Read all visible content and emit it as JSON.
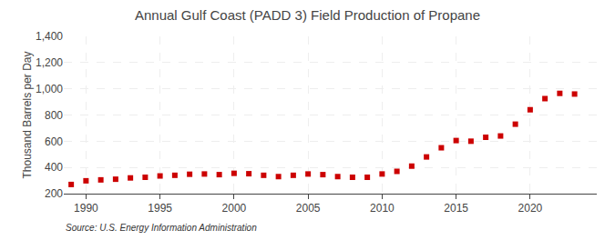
{
  "chart_data": {
    "type": "scatter",
    "title": "Annual Gulf Coast (PADD 3) Field Production of Propane",
    "ylabel": "Thousand Barrels per Day",
    "annotations": [
      "Source: U.S. Energy Information Administration"
    ],
    "x": [
      1989,
      1990,
      1991,
      1992,
      1993,
      1994,
      1995,
      1996,
      1997,
      1998,
      1999,
      2000,
      2001,
      2002,
      2003,
      2004,
      2005,
      2006,
      2007,
      2008,
      2009,
      2010,
      2011,
      2012,
      2013,
      2014,
      2015,
      2016,
      2017,
      2018,
      2019,
      2020,
      2021,
      2022,
      2023
    ],
    "values": [
      270,
      298,
      305,
      310,
      320,
      325,
      335,
      340,
      348,
      350,
      345,
      355,
      352,
      340,
      330,
      340,
      350,
      345,
      330,
      325,
      325,
      350,
      370,
      410,
      480,
      550,
      605,
      600,
      630,
      640,
      730,
      840,
      925,
      965,
      960
    ],
    "color": "#cc0000",
    "marker": "square",
    "xlim": [
      1988.5,
      2024.5
    ],
    "xticks": [
      1990,
      1995,
      2000,
      2005,
      2010,
      2015,
      2020
    ],
    "ylim": [
      200,
      1400
    ],
    "yticks": [
      200,
      400,
      600,
      800,
      {
        "value": 1000,
        "label": "1,000"
      },
      {
        "value": 1200,
        "label": "1,200"
      },
      {
        "value": 1400,
        "label": "1,400"
      }
    ],
    "grid": true
  }
}
